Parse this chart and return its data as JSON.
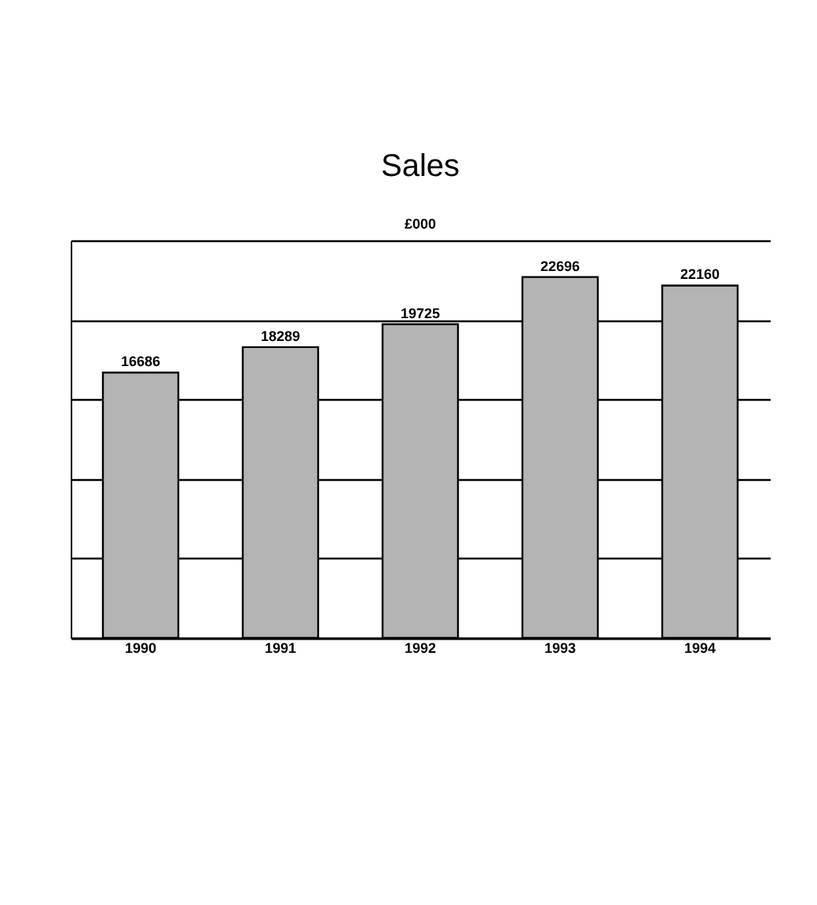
{
  "chart_data": {
    "type": "bar",
    "title": "Sales",
    "ylabel": "£000",
    "categories": [
      "1990",
      "1991",
      "1992",
      "1993",
      "1994"
    ],
    "values": [
      16686,
      18289,
      19725,
      22696,
      22160
    ],
    "color": "#b4b4b4",
    "ylim": [
      0,
      25000
    ],
    "yticks": [
      {
        "value": 0,
        "label": null
      },
      {
        "value": 5000,
        "label": null
      },
      {
        "value": 10000,
        "label": null
      },
      {
        "value": 15000,
        "label": null
      },
      {
        "value": 20000,
        "label": null
      },
      {
        "value": 25000,
        "label": null
      }
    ],
    "tick_labels": "x",
    "grid": "y",
    "data_labels": true
  }
}
